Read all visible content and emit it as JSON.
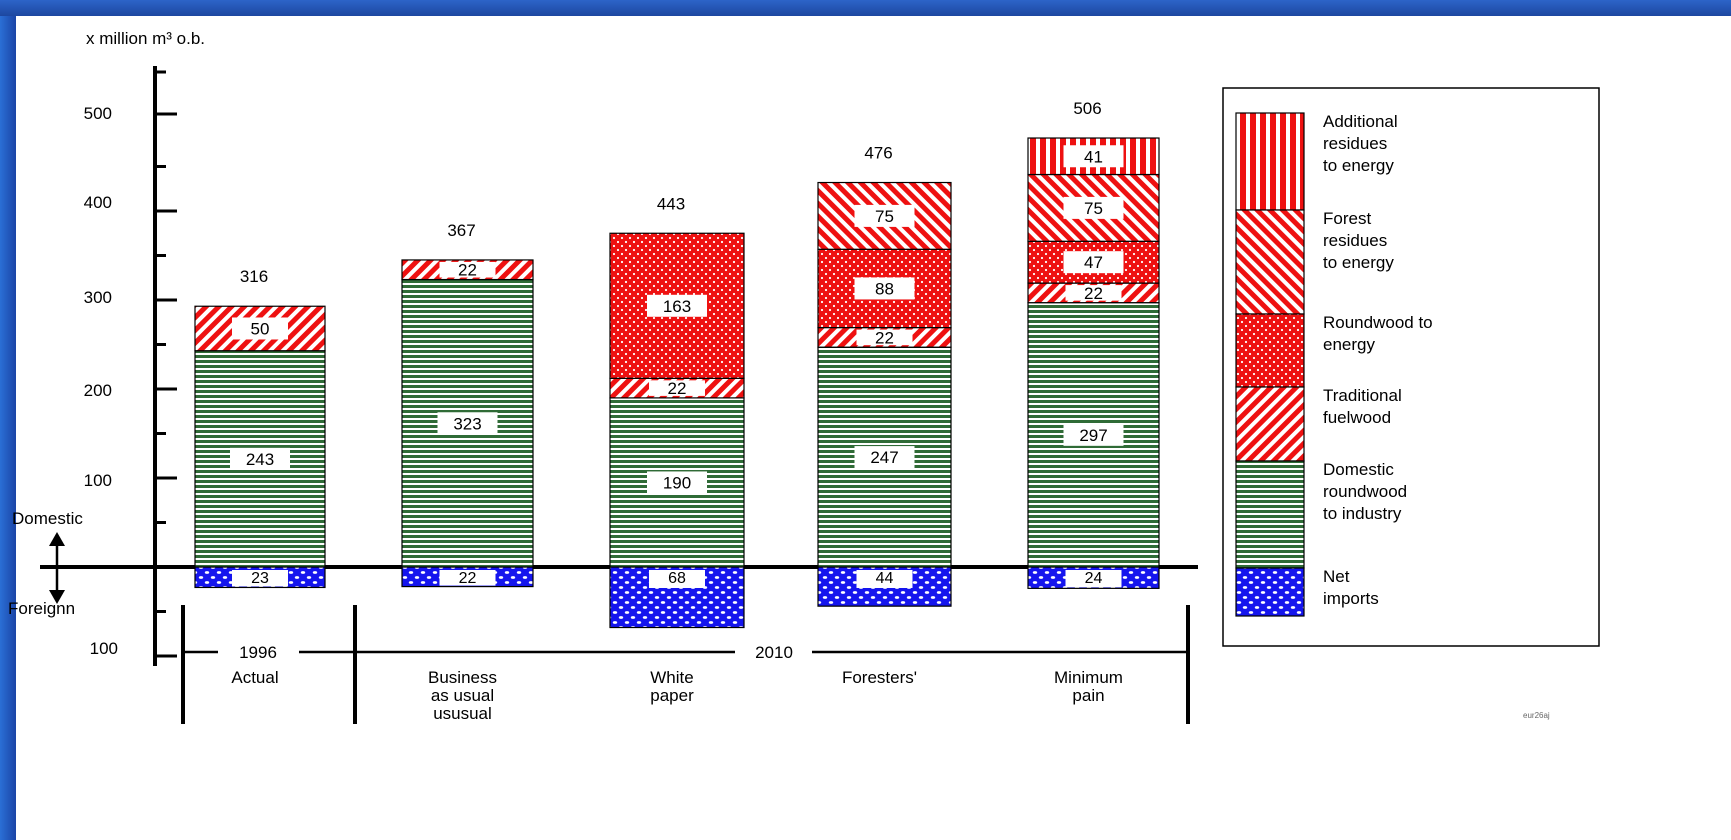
{
  "chart_data": {
    "type": "bar",
    "ylabel": "x million m³ o.b.",
    "y_ticks": [
      "500",
      "400",
      "300",
      "200",
      "100"
    ],
    "y_bottom_tick": "100",
    "ylim": [
      -100,
      560
    ],
    "side_labels": {
      "domestic": "Domestic",
      "foreign": "Foreignn"
    },
    "period_labels": [
      "1996",
      "2010"
    ],
    "categories": [
      "Actual",
      "Business\nas usual\nususual",
      "White\npaper",
      "Foresters'",
      "Minimum\npain"
    ],
    "totals": [
      "316",
      "367",
      "443",
      "476",
      "506"
    ],
    "series": [
      {
        "name": "Net imports",
        "key": "imports",
        "values": [
          -23,
          -22,
          -68,
          -44,
          -24
        ],
        "labels": [
          "23",
          "22",
          "68",
          "44",
          "24"
        ]
      },
      {
        "name": "Domestic roundwood to industry",
        "key": "domestic",
        "values": [
          243,
          323,
          190,
          247,
          297
        ],
        "labels": [
          "243",
          "323",
          "190",
          "247",
          "297"
        ]
      },
      {
        "name": "Traditional fuelwood",
        "key": "fuelwood",
        "values": [
          50,
          22,
          22,
          22,
          22
        ],
        "labels": [
          "50",
          "22",
          "22",
          "22",
          "22"
        ]
      },
      {
        "name": "Roundwood to energy",
        "key": "roundwood",
        "values": [
          0,
          0,
          163,
          88,
          47
        ],
        "labels": [
          "",
          "",
          "163",
          "88",
          "47"
        ]
      },
      {
        "name": "Forest residues to energy",
        "key": "residues",
        "values": [
          0,
          0,
          0,
          75,
          75
        ],
        "labels": [
          "",
          "",
          "",
          "75",
          "75"
        ]
      },
      {
        "name": "Additional residues to energy",
        "key": "additional",
        "values": [
          0,
          0,
          0,
          0,
          41
        ],
        "labels": [
          "",
          "",
          "",
          "",
          "41"
        ]
      }
    ],
    "legend": [
      {
        "key": "additional",
        "lines": [
          "Additional",
          "residues",
          "to energy"
        ]
      },
      {
        "key": "residues",
        "lines": [
          "Forest",
          "residues",
          "to energy"
        ]
      },
      {
        "key": "roundwood",
        "lines": [
          "Roundwood to",
          "energy"
        ]
      },
      {
        "key": "fuelwood",
        "lines": [
          "Traditional",
          "fuelwood"
        ]
      },
      {
        "key": "domestic",
        "lines": [
          "Domestic",
          "roundwood",
          "to industry"
        ]
      },
      {
        "key": "imports",
        "lines": [
          "Net",
          "imports"
        ]
      }
    ],
    "legend_position": "right",
    "colors": {
      "red": "#ee1111",
      "green": "#2f6b36",
      "blue": "#1515ee"
    },
    "footnote": "eur26aj"
  }
}
